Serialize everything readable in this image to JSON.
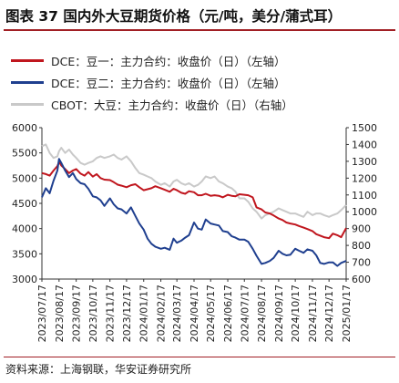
{
  "title": "图表 37 国内外大豆期货价格（元/吨，美分/蒲式耳）",
  "source": "资料来源：上海钢联，华安证券研究所",
  "chart_data": {
    "type": "line",
    "legend": [
      {
        "name": "DCE：豆一：主力合约：收盘价（日）（左轴）",
        "color": "#c0161e"
      },
      {
        "name": "DCE：豆二：主力合约：收盘价（日）（左轴）",
        "color": "#1f3f8f"
      },
      {
        "name": "CBOT：大豆：主力合约：收盘价（日）（右轴）",
        "color": "#c9c9c9"
      }
    ],
    "y_left": {
      "min": 3000,
      "max": 6000,
      "step": 500,
      "ticks": [
        "3000",
        "3500",
        "4000",
        "4500",
        "5000",
        "5500",
        "6000"
      ]
    },
    "y_right": {
      "min": 600,
      "max": 1500,
      "step": 100,
      "ticks": [
        "600",
        "700",
        "800",
        "900",
        "1000",
        "1100",
        "1200",
        "1300",
        "1400",
        "1500"
      ]
    },
    "x": {
      "min": "2023-07-17",
      "max": "2025-01-17",
      "ticks": [
        "2023/07/17",
        "2023/08/17",
        "2023/09/17",
        "2023/10/17",
        "2023/11/17",
        "2023/12/17",
        "2024/01/17",
        "2024/02/17",
        "2024/03/17",
        "2024/04/17",
        "2024/05/17",
        "2024/06/17",
        "2024/07/17",
        "2024/08/17",
        "2024/09/17",
        "2024/10/17",
        "2024/11/17",
        "2024/12/17",
        "2025/01/17"
      ]
    },
    "grid": false,
    "series": [
      {
        "name": "DCE：豆一：主力合约：收盘价（日）（左轴）",
        "axis": "left",
        "color": "#c0161e",
        "x": [
          "2023-07-17",
          "2023-07-24",
          "2023-07-31",
          "2023-08-07",
          "2023-08-14",
          "2023-08-17",
          "2023-08-21",
          "2023-08-28",
          "2023-09-04",
          "2023-09-11",
          "2023-09-17",
          "2023-09-25",
          "2023-10-02",
          "2023-10-09",
          "2023-10-17",
          "2023-10-24",
          "2023-10-31",
          "2023-11-07",
          "2023-11-17",
          "2023-11-24",
          "2023-12-01",
          "2023-12-08",
          "2023-12-17",
          "2023-12-25",
          "2024-01-02",
          "2024-01-09",
          "2024-01-17",
          "2024-01-24",
          "2024-01-31",
          "2024-02-07",
          "2024-02-17",
          "2024-02-24",
          "2024-03-04",
          "2024-03-11",
          "2024-03-17",
          "2024-03-25",
          "2024-04-01",
          "2024-04-08",
          "2024-04-17",
          "2024-04-24",
          "2024-05-01",
          "2024-05-08",
          "2024-05-17",
          "2024-05-24",
          "2024-06-01",
          "2024-06-08",
          "2024-06-17",
          "2024-06-24",
          "2024-07-01",
          "2024-07-08",
          "2024-07-17",
          "2024-07-24",
          "2024-08-01",
          "2024-08-08",
          "2024-08-17",
          "2024-08-24",
          "2024-09-01",
          "2024-09-08",
          "2024-09-17",
          "2024-09-24",
          "2024-10-01",
          "2024-10-08",
          "2024-10-17",
          "2024-10-24",
          "2024-11-01",
          "2024-11-08",
          "2024-11-17",
          "2024-11-24",
          "2024-12-01",
          "2024-12-08",
          "2024-12-17",
          "2024-12-24",
          "2025-01-01",
          "2025-01-08",
          "2025-01-17"
        ],
        "y": [
          5100,
          5080,
          5050,
          5150,
          5240,
          5320,
          5250,
          5180,
          5100,
          5150,
          5180,
          5090,
          5050,
          5120,
          5030,
          5080,
          5000,
          4970,
          4960,
          4920,
          4870,
          4850,
          4820,
          4860,
          4880,
          4820,
          4760,
          4780,
          4800,
          4840,
          4800,
          4770,
          4730,
          4790,
          4760,
          4710,
          4690,
          4740,
          4720,
          4660,
          4660,
          4690,
          4650,
          4660,
          4650,
          4620,
          4670,
          4650,
          4640,
          4680,
          4670,
          4660,
          4620,
          4420,
          4380,
          4320,
          4300,
          4260,
          4200,
          4170,
          4120,
          4100,
          4080,
          4050,
          4020,
          3990,
          3950,
          3890,
          3860,
          3830,
          3810,
          3900,
          3870,
          3830,
          4010
        ]
      },
      {
        "name": "DCE：豆二：主力合约：收盘价（日）（左轴）",
        "axis": "left",
        "color": "#1f3f8f",
        "x": [
          "2023-07-17",
          "2023-07-24",
          "2023-07-31",
          "2023-08-07",
          "2023-08-14",
          "2023-08-17",
          "2023-08-21",
          "2023-08-28",
          "2023-09-04",
          "2023-09-11",
          "2023-09-17",
          "2023-09-25",
          "2023-10-02",
          "2023-10-09",
          "2023-10-17",
          "2023-10-24",
          "2023-10-31",
          "2023-11-07",
          "2023-11-17",
          "2023-11-24",
          "2023-12-01",
          "2023-12-08",
          "2023-12-17",
          "2023-12-25",
          "2024-01-02",
          "2024-01-09",
          "2024-01-17",
          "2024-01-24",
          "2024-01-31",
          "2024-02-07",
          "2024-02-17",
          "2024-02-24",
          "2024-03-04",
          "2024-03-11",
          "2024-03-17",
          "2024-03-25",
          "2024-04-01",
          "2024-04-08",
          "2024-04-17",
          "2024-04-24",
          "2024-05-01",
          "2024-05-08",
          "2024-05-17",
          "2024-05-24",
          "2024-06-01",
          "2024-06-08",
          "2024-06-17",
          "2024-06-24",
          "2024-07-01",
          "2024-07-08",
          "2024-07-17",
          "2024-07-24",
          "2024-08-01",
          "2024-08-08",
          "2024-08-17",
          "2024-08-24",
          "2024-09-01",
          "2024-09-08",
          "2024-09-17",
          "2024-09-24",
          "2024-10-01",
          "2024-10-08",
          "2024-10-17",
          "2024-10-24",
          "2024-11-01",
          "2024-11-08",
          "2024-11-17",
          "2024-11-24",
          "2024-12-01",
          "2024-12-08",
          "2024-12-17",
          "2024-12-24",
          "2025-01-01",
          "2025-01-08",
          "2025-01-17"
        ],
        "y": [
          4620,
          4800,
          4700,
          4950,
          5150,
          5380,
          5300,
          5150,
          5020,
          5100,
          4980,
          4900,
          4880,
          4790,
          4640,
          4620,
          4560,
          4450,
          4600,
          4480,
          4400,
          4380,
          4300,
          4420,
          4250,
          4100,
          3980,
          3800,
          3700,
          3640,
          3600,
          3620,
          3580,
          3800,
          3720,
          3760,
          3820,
          3870,
          4120,
          4000,
          3980,
          4180,
          4100,
          4080,
          4060,
          3950,
          3930,
          3850,
          3820,
          3780,
          3780,
          3740,
          3600,
          3460,
          3300,
          3320,
          3360,
          3420,
          3560,
          3500,
          3470,
          3480,
          3600,
          3560,
          3520,
          3590,
          3560,
          3470,
          3320,
          3300,
          3330,
          3330,
          3260,
          3320,
          3360
        ]
      },
      {
        "name": "CBOT：大豆：主力合约：收盘价（日）（右轴）",
        "axis": "right",
        "color": "#c9c9c9",
        "x": [
          "2023-07-17",
          "2023-07-24",
          "2023-07-31",
          "2023-08-07",
          "2023-08-14",
          "2023-08-17",
          "2023-08-21",
          "2023-08-28",
          "2023-09-04",
          "2023-09-11",
          "2023-09-17",
          "2023-09-25",
          "2023-10-02",
          "2023-10-09",
          "2023-10-17",
          "2023-10-24",
          "2023-10-31",
          "2023-11-07",
          "2023-11-17",
          "2023-11-24",
          "2023-12-01",
          "2023-12-08",
          "2023-12-17",
          "2023-12-25",
          "2024-01-02",
          "2024-01-09",
          "2024-01-17",
          "2024-01-24",
          "2024-01-31",
          "2024-02-07",
          "2024-02-17",
          "2024-02-24",
          "2024-03-04",
          "2024-03-11",
          "2024-03-17",
          "2024-03-25",
          "2024-04-01",
          "2024-04-08",
          "2024-04-17",
          "2024-04-24",
          "2024-05-01",
          "2024-05-08",
          "2024-05-17",
          "2024-05-24",
          "2024-06-01",
          "2024-06-08",
          "2024-06-17",
          "2024-06-24",
          "2024-07-01",
          "2024-07-08",
          "2024-07-17",
          "2024-07-24",
          "2024-08-01",
          "2024-08-08",
          "2024-08-17",
          "2024-08-24",
          "2024-09-01",
          "2024-09-08",
          "2024-09-17",
          "2024-09-24",
          "2024-10-01",
          "2024-10-08",
          "2024-10-17",
          "2024-10-24",
          "2024-11-01",
          "2024-11-08",
          "2024-11-17",
          "2024-11-24",
          "2024-12-01",
          "2024-12-08",
          "2024-12-17",
          "2024-12-24",
          "2025-01-01",
          "2025-01-08",
          "2025-01-17"
        ],
        "y": [
          1390,
          1400,
          1350,
          1320,
          1330,
          1360,
          1380,
          1350,
          1370,
          1340,
          1320,
          1290,
          1280,
          1290,
          1300,
          1320,
          1330,
          1320,
          1330,
          1340,
          1320,
          1310,
          1330,
          1300,
          1260,
          1230,
          1220,
          1210,
          1200,
          1180,
          1160,
          1170,
          1150,
          1180,
          1190,
          1170,
          1160,
          1170,
          1150,
          1160,
          1180,
          1210,
          1200,
          1210,
          1180,
          1170,
          1150,
          1140,
          1120,
          1080,
          1080,
          1060,
          1020,
          1000,
          960,
          980,
          990,
          1000,
          1020,
          1010,
          1000,
          990,
          990,
          980,
          970,
          1000,
          980,
          990,
          990,
          980,
          970,
          980,
          990,
          1010,
          1040
        ]
      }
    ]
  }
}
